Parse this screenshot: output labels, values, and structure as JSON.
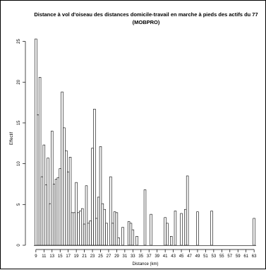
{
  "chart_data": {
    "type": "bar",
    "title_line1": "Distance à vol d'oiseau des distances domicile-travail en marche à pieds des actifs du 77",
    "title_line2": "(MOBPRO)",
    "xlabel": "Distance (km)",
    "ylabel": "Effectif",
    "x_tick_labels": [
      "9",
      "11",
      "13",
      "15",
      "17",
      "19",
      "21",
      "23",
      "25",
      "27",
      "29",
      "31",
      "33",
      "35",
      "37",
      "39",
      "41",
      "43",
      "45",
      "47",
      "49",
      "51",
      "53",
      "55",
      "57",
      "59",
      "61",
      "63"
    ],
    "y_ticks": [
      0,
      5,
      10,
      15,
      20,
      25
    ],
    "ylim": [
      0,
      26
    ],
    "x_range": [
      8.5,
      63.5
    ],
    "bar_width_km": 0.5,
    "bars": [
      {
        "x": 9.0,
        "y": 25.3
      },
      {
        "x": 9.5,
        "y": 16.0
      },
      {
        "x": 10.0,
        "y": 20.6
      },
      {
        "x": 10.5,
        "y": 8.4
      },
      {
        "x": 11.0,
        "y": 12.3
      },
      {
        "x": 11.5,
        "y": 7.4
      },
      {
        "x": 12.0,
        "y": 10.7
      },
      {
        "x": 12.5,
        "y": 5.1
      },
      {
        "x": 13.0,
        "y": 14.0
      },
      {
        "x": 13.5,
        "y": 7.5
      },
      {
        "x": 14.0,
        "y": 8.1
      },
      {
        "x": 14.5,
        "y": 8.3
      },
      {
        "x": 15.0,
        "y": 9.4
      },
      {
        "x": 15.5,
        "y": 18.8
      },
      {
        "x": 16.0,
        "y": 14.4
      },
      {
        "x": 16.5,
        "y": 11.6
      },
      {
        "x": 17.0,
        "y": 9.0
      },
      {
        "x": 17.5,
        "y": 10.8
      },
      {
        "x": 18.0,
        "y": 4.0
      },
      {
        "x": 18.5,
        "y": 4.0
      },
      {
        "x": 19.0,
        "y": 7.7
      },
      {
        "x": 19.5,
        "y": 4.0
      },
      {
        "x": 20.0,
        "y": 4.2
      },
      {
        "x": 20.5,
        "y": 4.5
      },
      {
        "x": 21.0,
        "y": 2.6
      },
      {
        "x": 21.5,
        "y": 7.3
      },
      {
        "x": 22.0,
        "y": 2.7
      },
      {
        "x": 22.5,
        "y": 3.0
      },
      {
        "x": 23.0,
        "y": 11.9
      },
      {
        "x": 23.5,
        "y": 16.7
      },
      {
        "x": 24.0,
        "y": 3.3
      },
      {
        "x": 24.5,
        "y": 5.9
      },
      {
        "x": 25.0,
        "y": 12.1
      },
      {
        "x": 25.5,
        "y": 5.1
      },
      {
        "x": 26.0,
        "y": 4.4
      },
      {
        "x": 26.5,
        "y": 2.7
      },
      {
        "x": 27.5,
        "y": 8.4
      },
      {
        "x": 28.0,
        "y": 2.7
      },
      {
        "x": 28.5,
        "y": 4.1
      },
      {
        "x": 29.0,
        "y": 4.0
      },
      {
        "x": 29.5,
        "y": 0.9
      },
      {
        "x": 30.5,
        "y": 2.2
      },
      {
        "x": 32.0,
        "y": 2.9
      },
      {
        "x": 32.5,
        "y": 2.7
      },
      {
        "x": 33.0,
        "y": 1.9
      },
      {
        "x": 34.0,
        "y": 1.1
      },
      {
        "x": 36.0,
        "y": 6.8
      },
      {
        "x": 37.5,
        "y": 3.8
      },
      {
        "x": 41.0,
        "y": 3.4
      },
      {
        "x": 41.5,
        "y": 2.7
      },
      {
        "x": 42.5,
        "y": 1.1
      },
      {
        "x": 43.5,
        "y": 4.2
      },
      {
        "x": 45.0,
        "y": 3.9
      },
      {
        "x": 46.0,
        "y": 4.4
      },
      {
        "x": 46.5,
        "y": 8.5
      },
      {
        "x": 49.0,
        "y": 4.1
      },
      {
        "x": 52.5,
        "y": 4.2
      },
      {
        "x": 63.0,
        "y": 3.3
      }
    ]
  }
}
